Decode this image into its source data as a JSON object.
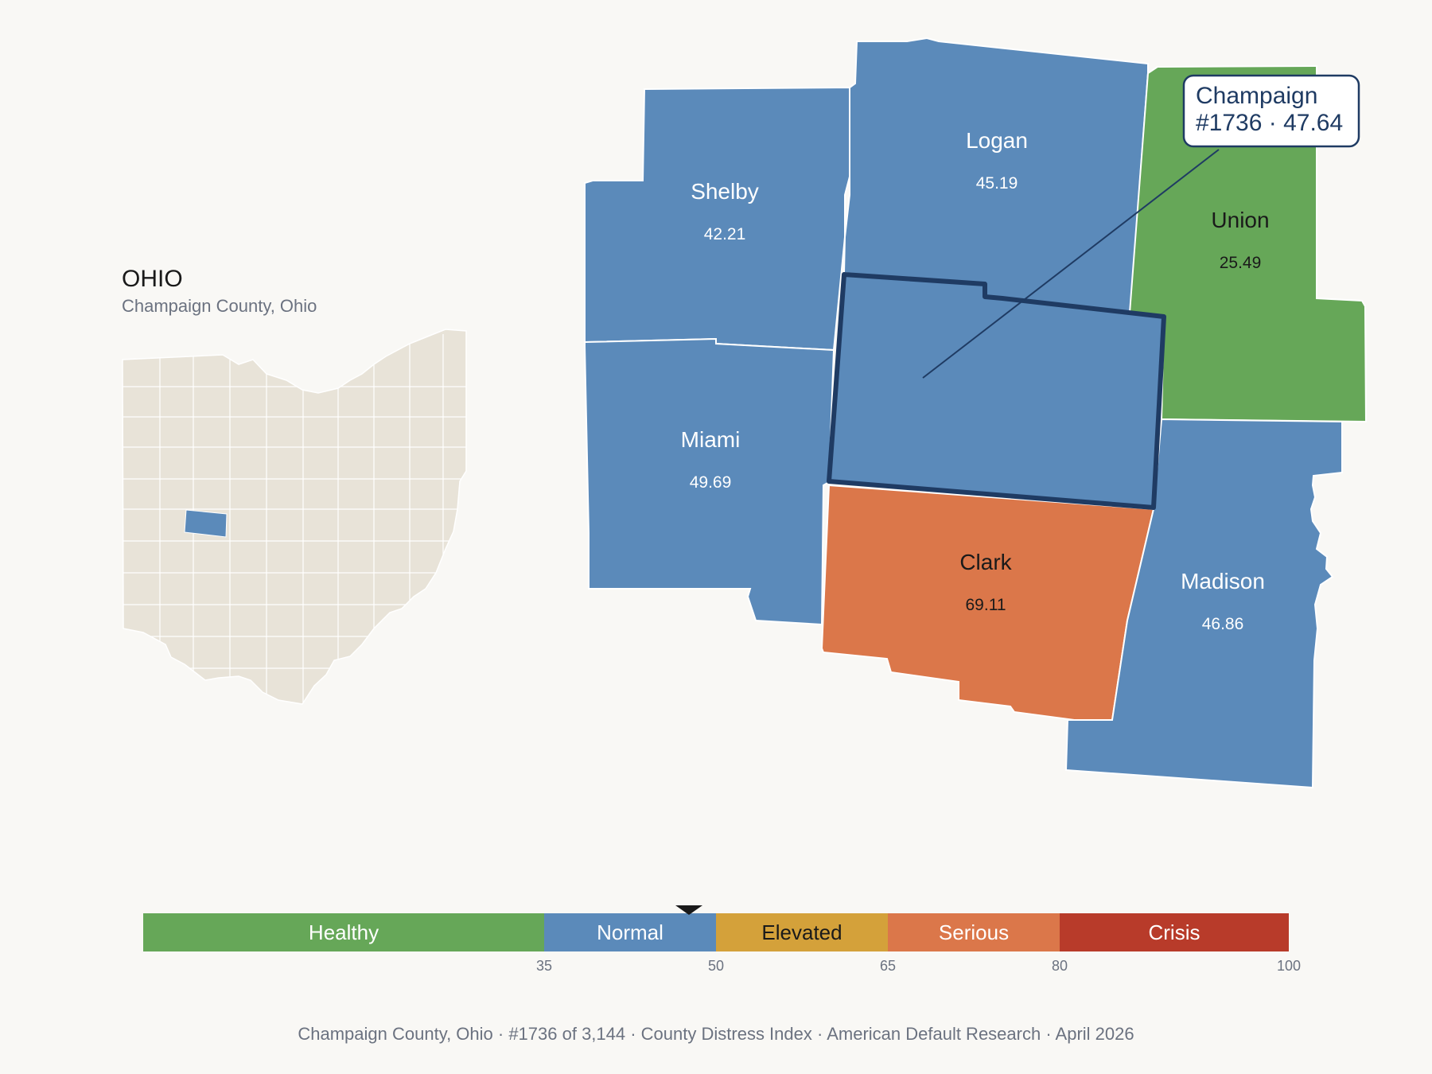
{
  "inset": {
    "state_name": "OHIO",
    "subtitle": "Champaign County, Ohio",
    "base_color": "#e8e3d8",
    "highlight_color": "#5b8aba"
  },
  "counties": [
    {
      "id": "shelby",
      "name": "Shelby",
      "value": "42.21",
      "category": "Normal",
      "fill": "#5b8aba",
      "text_color": "#ffffff"
    },
    {
      "id": "logan",
      "name": "Logan",
      "value": "45.19",
      "category": "Normal",
      "fill": "#5b8aba",
      "text_color": "#ffffff"
    },
    {
      "id": "union",
      "name": "Union",
      "value": "25.49",
      "category": "Healthy",
      "fill": "#66a758",
      "text_color": "#1a1a1a"
    },
    {
      "id": "miami",
      "name": "Miami",
      "value": "49.69",
      "category": "Normal",
      "fill": "#5b8aba",
      "text_color": "#ffffff"
    },
    {
      "id": "clark",
      "name": "Clark",
      "value": "69.11",
      "category": "Serious",
      "fill": "#db774a",
      "text_color": "#1a1a1a"
    },
    {
      "id": "madison",
      "name": "Madison",
      "value": "46.86",
      "category": "Normal",
      "fill": "#5b8aba",
      "text_color": "#ffffff"
    },
    {
      "id": "champaign",
      "name": "Champaign",
      "value": "47.64",
      "category": "Normal",
      "fill": "#5b8aba",
      "text_color": "#ffffff",
      "selected": true
    }
  ],
  "callout": {
    "line1": "Champaign",
    "line2": "#1736 · 47.64",
    "border_color": "#1f3b63"
  },
  "legend": {
    "min": 0,
    "max": 100,
    "marker_value": 47.64,
    "segments": [
      {
        "label": "Healthy",
        "from": 0,
        "to": 35,
        "color": "#66a758",
        "text_color": "#ffffff"
      },
      {
        "label": "Normal",
        "from": 35,
        "to": 50,
        "color": "#5b8aba",
        "text_color": "#ffffff"
      },
      {
        "label": "Elevated",
        "from": 50,
        "to": 65,
        "color": "#d4a13a",
        "text_color": "#1a1a1a"
      },
      {
        "label": "Serious",
        "from": 65,
        "to": 80,
        "color": "#db774a",
        "text_color": "#ffffff"
      },
      {
        "label": "Crisis",
        "from": 80,
        "to": 100,
        "color": "#b83b2a",
        "text_color": "#ffffff"
      }
    ],
    "ticks": [
      "35",
      "50",
      "65",
      "80",
      "100"
    ]
  },
  "footer": "Champaign County, Ohio  ·  #1736 of 3,144  ·  County Distress Index  ·  American Default Research  ·  April 2026"
}
